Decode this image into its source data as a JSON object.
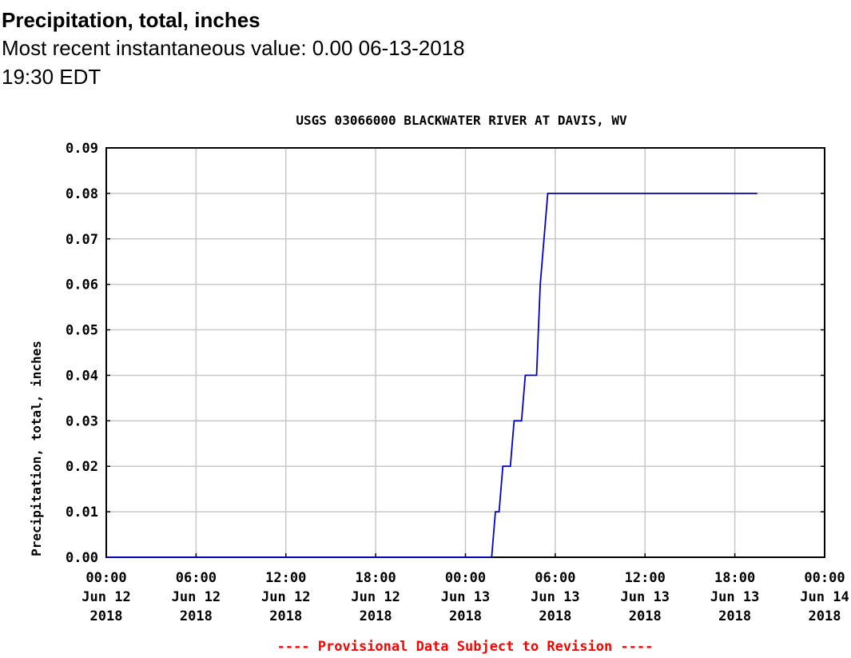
{
  "header": {
    "title": "Precipitation, total, inches",
    "recent_label": "Most recent instantaneous value:",
    "recent_value": "0.00",
    "recent_datetime": "06-13-2018   19:30 EDT"
  },
  "chart_data": {
    "type": "line",
    "title": "USGS 03066000 BLACKWATER RIVER AT DAVIS, WV",
    "ylabel": "Precipitation, total, inches",
    "xlabel": "",
    "ylim": [
      0,
      0.09
    ],
    "yticks": [
      "0.00",
      "0.01",
      "0.02",
      "0.03",
      "0.04",
      "0.05",
      "0.06",
      "0.07",
      "0.08",
      "0.09"
    ],
    "xlim": [
      "2018-06-12 00:00",
      "2018-06-14 00:00"
    ],
    "xticks": [
      {
        "x": "2018-06-12 00:00",
        "lines": [
          "00:00",
          "Jun 12",
          "2018"
        ]
      },
      {
        "x": "2018-06-12 06:00",
        "lines": [
          "06:00",
          "Jun 12",
          "2018"
        ]
      },
      {
        "x": "2018-06-12 12:00",
        "lines": [
          "12:00",
          "Jun 12",
          "2018"
        ]
      },
      {
        "x": "2018-06-12 18:00",
        "lines": [
          "18:00",
          "Jun 12",
          "2018"
        ]
      },
      {
        "x": "2018-06-13 00:00",
        "lines": [
          "00:00",
          "Jun 13",
          "2018"
        ]
      },
      {
        "x": "2018-06-13 06:00",
        "lines": [
          "06:00",
          "Jun 13",
          "2018"
        ]
      },
      {
        "x": "2018-06-13 12:00",
        "lines": [
          "12:00",
          "Jun 13",
          "2018"
        ]
      },
      {
        "x": "2018-06-13 18:00",
        "lines": [
          "18:00",
          "Jun 13",
          "2018"
        ]
      },
      {
        "x": "2018-06-14 00:00",
        "lines": [
          "00:00",
          "Jun 14",
          "2018"
        ]
      }
    ],
    "grid": true,
    "series": [
      {
        "color": "#0000cc",
        "x": [
          "2018-06-12 00:00",
          "2018-06-13 01:45",
          "2018-06-13 02:00",
          "2018-06-13 02:15",
          "2018-06-13 02:30",
          "2018-06-13 02:45",
          "2018-06-13 03:00",
          "2018-06-13 03:15",
          "2018-06-13 03:30",
          "2018-06-13 03:45",
          "2018-06-13 04:00",
          "2018-06-13 04:15",
          "2018-06-13 04:30",
          "2018-06-13 04:45",
          "2018-06-13 05:00",
          "2018-06-13 05:15",
          "2018-06-13 05:30",
          "2018-06-13 19:30"
        ],
        "y": [
          0.0,
          0.0,
          0.01,
          0.01,
          0.02,
          0.02,
          0.02,
          0.03,
          0.03,
          0.03,
          0.04,
          0.04,
          0.04,
          0.04,
          0.06,
          0.07,
          0.08,
          0.08
        ]
      }
    ],
    "footnote": "---- Provisional Data Subject to Revision ----",
    "footnote_color": "#ff0000"
  }
}
